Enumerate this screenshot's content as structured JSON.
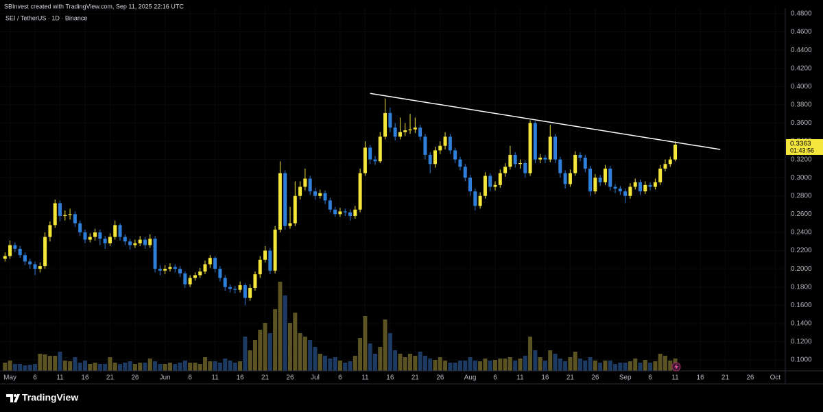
{
  "header": "SBInvest created with TradingView.com, Sep 11, 2025 22:16 UTC",
  "brand": "TradingView",
  "chart_data": {
    "type": "candlestick",
    "title": "SEI / TetherUS · 1D · Binance",
    "x": [
      "2025-04-30",
      "2025-05-01",
      "2025-05-02",
      "2025-05-03",
      "2025-05-04",
      "2025-05-05",
      "2025-05-06",
      "2025-05-07",
      "2025-05-08",
      "2025-05-09",
      "2025-05-10",
      "2025-05-11",
      "2025-05-12",
      "2025-05-13",
      "2025-05-14",
      "2025-05-15",
      "2025-05-16",
      "2025-05-17",
      "2025-05-18",
      "2025-05-19",
      "2025-05-20",
      "2025-05-21",
      "2025-05-22",
      "2025-05-23",
      "2025-05-24",
      "2025-05-25",
      "2025-05-26",
      "2025-05-27",
      "2025-05-28",
      "2025-05-29",
      "2025-05-30",
      "2025-05-31",
      "2025-06-01",
      "2025-06-02",
      "2025-06-03",
      "2025-06-04",
      "2025-06-05",
      "2025-06-06",
      "2025-06-07",
      "2025-06-08",
      "2025-06-09",
      "2025-06-10",
      "2025-06-11",
      "2025-06-12",
      "2025-06-13",
      "2025-06-14",
      "2025-06-15",
      "2025-06-16",
      "2025-06-17",
      "2025-06-18",
      "2025-06-19",
      "2025-06-20",
      "2025-06-21",
      "2025-06-22",
      "2025-06-23",
      "2025-06-24",
      "2025-06-25",
      "2025-06-26",
      "2025-06-27",
      "2025-06-28",
      "2025-06-29",
      "2025-06-30",
      "2025-07-01",
      "2025-07-02",
      "2025-07-03",
      "2025-07-04",
      "2025-07-05",
      "2025-07-06",
      "2025-07-07",
      "2025-07-08",
      "2025-07-09",
      "2025-07-10",
      "2025-07-11",
      "2025-07-12",
      "2025-07-13",
      "2025-07-14",
      "2025-07-15",
      "2025-07-16",
      "2025-07-17",
      "2025-07-18",
      "2025-07-19",
      "2025-07-20",
      "2025-07-21",
      "2025-07-22",
      "2025-07-23",
      "2025-07-24",
      "2025-07-25",
      "2025-07-26",
      "2025-07-27",
      "2025-07-28",
      "2025-07-29",
      "2025-07-30",
      "2025-07-31",
      "2025-08-01",
      "2025-08-02",
      "2025-08-03",
      "2025-08-04",
      "2025-08-05",
      "2025-08-06",
      "2025-08-07",
      "2025-08-08",
      "2025-08-09",
      "2025-08-10",
      "2025-08-11",
      "2025-08-12",
      "2025-08-13",
      "2025-08-14",
      "2025-08-15",
      "2025-08-16",
      "2025-08-17",
      "2025-08-18",
      "2025-08-19",
      "2025-08-20",
      "2025-08-21",
      "2025-08-22",
      "2025-08-23",
      "2025-08-24",
      "2025-08-25",
      "2025-08-26",
      "2025-08-27",
      "2025-08-28",
      "2025-08-29",
      "2025-08-30",
      "2025-08-31",
      "2025-09-01",
      "2025-09-02",
      "2025-09-03",
      "2025-09-04",
      "2025-09-05",
      "2025-09-06",
      "2025-09-07",
      "2025-09-08",
      "2025-09-09",
      "2025-09-10",
      "2025-09-11"
    ],
    "open": [
      0.211,
      0.214,
      0.226,
      0.222,
      0.215,
      0.208,
      0.205,
      0.2,
      0.203,
      0.235,
      0.248,
      0.272,
      0.258,
      0.259,
      0.26,
      0.25,
      0.24,
      0.232,
      0.235,
      0.24,
      0.233,
      0.228,
      0.235,
      0.248,
      0.235,
      0.23,
      0.226,
      0.228,
      0.232,
      0.226,
      0.233,
      0.2,
      0.198,
      0.2,
      0.202,
      0.2,
      0.195,
      0.183,
      0.19,
      0.193,
      0.197,
      0.205,
      0.212,
      0.2,
      0.19,
      0.18,
      0.178,
      0.177,
      0.182,
      0.168,
      0.179,
      0.194,
      0.21,
      0.22,
      0.198,
      0.243,
      0.305,
      0.247,
      0.25,
      0.28,
      0.29,
      0.299,
      0.285,
      0.28,
      0.283,
      0.275,
      0.265,
      0.26,
      0.263,
      0.262,
      0.258,
      0.265,
      0.305,
      0.333,
      0.32,
      0.318,
      0.345,
      0.371,
      0.355,
      0.345,
      0.35,
      0.352,
      0.353,
      0.355,
      0.345,
      0.325,
      0.315,
      0.33,
      0.335,
      0.345,
      0.33,
      0.32,
      0.312,
      0.3,
      0.285,
      0.269,
      0.28,
      0.302,
      0.29,
      0.292,
      0.305,
      0.312,
      0.325,
      0.315,
      0.316,
      0.305,
      0.36,
      0.32,
      0.322,
      0.32,
      0.345,
      0.32,
      0.305,
      0.293,
      0.305,
      0.325,
      0.322,
      0.31,
      0.285,
      0.3,
      0.295,
      0.31,
      0.29,
      0.288,
      0.285,
      0.28,
      0.29,
      0.295,
      0.285,
      0.292,
      0.29,
      0.295,
      0.31,
      0.315,
      0.32
    ],
    "high": [
      0.218,
      0.231,
      0.229,
      0.225,
      0.218,
      0.211,
      0.208,
      0.207,
      0.24,
      0.252,
      0.276,
      0.275,
      0.264,
      0.266,
      0.263,
      0.253,
      0.243,
      0.239,
      0.244,
      0.243,
      0.236,
      0.239,
      0.253,
      0.25,
      0.238,
      0.233,
      0.232,
      0.236,
      0.235,
      0.238,
      0.236,
      0.204,
      0.204,
      0.206,
      0.205,
      0.203,
      0.197,
      0.193,
      0.196,
      0.201,
      0.209,
      0.215,
      0.214,
      0.203,
      0.193,
      0.183,
      0.181,
      0.186,
      0.184,
      0.183,
      0.197,
      0.214,
      0.225,
      0.223,
      0.247,
      0.318,
      0.308,
      0.268,
      0.296,
      0.296,
      0.31,
      0.302,
      0.289,
      0.287,
      0.286,
      0.278,
      0.268,
      0.267,
      0.266,
      0.265,
      0.269,
      0.31,
      0.34,
      0.336,
      0.324,
      0.35,
      0.387,
      0.377,
      0.36,
      0.366,
      0.36,
      0.37,
      0.366,
      0.358,
      0.348,
      0.328,
      0.334,
      0.34,
      0.35,
      0.348,
      0.333,
      0.323,
      0.315,
      0.303,
      0.288,
      0.284,
      0.306,
      0.305,
      0.296,
      0.309,
      0.316,
      0.335,
      0.328,
      0.32,
      0.319,
      0.363,
      0.362,
      0.326,
      0.325,
      0.358,
      0.348,
      0.323,
      0.308,
      0.309,
      0.329,
      0.328,
      0.325,
      0.313,
      0.304,
      0.303,
      0.314,
      0.313,
      0.293,
      0.291,
      0.288,
      0.294,
      0.299,
      0.298,
      0.296,
      0.295,
      0.299,
      0.314,
      0.32,
      0.323,
      0.34
    ],
    "low": [
      0.208,
      0.211,
      0.218,
      0.212,
      0.204,
      0.2,
      0.193,
      0.196,
      0.2,
      0.23,
      0.245,
      0.252,
      0.253,
      0.254,
      0.246,
      0.236,
      0.228,
      0.229,
      0.231,
      0.226,
      0.222,
      0.225,
      0.232,
      0.231,
      0.226,
      0.221,
      0.223,
      0.225,
      0.222,
      0.223,
      0.196,
      0.193,
      0.194,
      0.197,
      0.196,
      0.191,
      0.179,
      0.18,
      0.187,
      0.19,
      0.194,
      0.201,
      0.196,
      0.186,
      0.176,
      0.174,
      0.173,
      0.174,
      0.16,
      0.165,
      0.176,
      0.19,
      0.207,
      0.194,
      0.195,
      0.24,
      0.243,
      0.244,
      0.247,
      0.276,
      0.286,
      0.281,
      0.276,
      0.277,
      0.271,
      0.262,
      0.257,
      0.257,
      0.258,
      0.253,
      0.255,
      0.262,
      0.302,
      0.315,
      0.314,
      0.316,
      0.342,
      0.35,
      0.341,
      0.342,
      0.346,
      0.348,
      0.349,
      0.341,
      0.32,
      0.305,
      0.311,
      0.326,
      0.331,
      0.326,
      0.316,
      0.308,
      0.296,
      0.28,
      0.264,
      0.266,
      0.277,
      0.285,
      0.286,
      0.289,
      0.301,
      0.309,
      0.311,
      0.31,
      0.3,
      0.302,
      0.316,
      0.316,
      0.316,
      0.317,
      0.316,
      0.3,
      0.288,
      0.29,
      0.302,
      0.318,
      0.306,
      0.28,
      0.282,
      0.291,
      0.292,
      0.286,
      0.283,
      0.281,
      0.272,
      0.277,
      0.287,
      0.281,
      0.282,
      0.286,
      0.287,
      0.292,
      0.307,
      0.312,
      0.318
    ],
    "close": [
      0.214,
      0.226,
      0.222,
      0.215,
      0.208,
      0.205,
      0.2,
      0.203,
      0.235,
      0.248,
      0.272,
      0.258,
      0.259,
      0.26,
      0.25,
      0.24,
      0.232,
      0.235,
      0.24,
      0.233,
      0.228,
      0.235,
      0.248,
      0.235,
      0.23,
      0.226,
      0.228,
      0.232,
      0.226,
      0.233,
      0.2,
      0.198,
      0.2,
      0.202,
      0.2,
      0.195,
      0.183,
      0.19,
      0.193,
      0.197,
      0.205,
      0.212,
      0.2,
      0.19,
      0.18,
      0.178,
      0.177,
      0.182,
      0.168,
      0.179,
      0.194,
      0.21,
      0.22,
      0.198,
      0.243,
      0.305,
      0.247,
      0.25,
      0.28,
      0.29,
      0.299,
      0.285,
      0.28,
      0.283,
      0.275,
      0.265,
      0.26,
      0.263,
      0.262,
      0.258,
      0.265,
      0.305,
      0.333,
      0.32,
      0.318,
      0.345,
      0.371,
      0.355,
      0.345,
      0.35,
      0.352,
      0.353,
      0.355,
      0.345,
      0.325,
      0.315,
      0.33,
      0.335,
      0.345,
      0.33,
      0.32,
      0.312,
      0.3,
      0.285,
      0.269,
      0.28,
      0.302,
      0.29,
      0.292,
      0.305,
      0.312,
      0.325,
      0.315,
      0.316,
      0.305,
      0.36,
      0.32,
      0.322,
      0.32,
      0.345,
      0.32,
      0.305,
      0.293,
      0.305,
      0.325,
      0.322,
      0.31,
      0.285,
      0.3,
      0.295,
      0.31,
      0.29,
      0.288,
      0.285,
      0.28,
      0.29,
      0.295,
      0.285,
      0.292,
      0.29,
      0.295,
      0.31,
      0.315,
      0.32,
      0.3363
    ],
    "volume": [
      12,
      15,
      10,
      10,
      8,
      9,
      10,
      25,
      24,
      22,
      22,
      28,
      15,
      14,
      20,
      12,
      15,
      10,
      12,
      10,
      10,
      20,
      12,
      10,
      12,
      14,
      10,
      12,
      12,
      18,
      14,
      10,
      10,
      12,
      10,
      12,
      15,
      12,
      12,
      10,
      20,
      14,
      14,
      12,
      18,
      15,
      12,
      14,
      50,
      30,
      45,
      60,
      70,
      55,
      90,
      130,
      110,
      70,
      85,
      55,
      50,
      45,
      35,
      25,
      22,
      18,
      20,
      15,
      12,
      14,
      22,
      48,
      80,
      40,
      25,
      35,
      75,
      55,
      30,
      25,
      20,
      25,
      22,
      28,
      22,
      18,
      16,
      20,
      15,
      12,
      12,
      15,
      15,
      20,
      15,
      14,
      18,
      15,
      16,
      18,
      18,
      20,
      15,
      18,
      22,
      50,
      30,
      20,
      15,
      30,
      25,
      18,
      14,
      20,
      28,
      18,
      15,
      20,
      15,
      12,
      15,
      15,
      10,
      12,
      12,
      14,
      18,
      12,
      16,
      12,
      14,
      25,
      22,
      15,
      18
    ],
    "up_color": "#f5e63c",
    "down_color": "#2f7fd8",
    "volume_up_color": "#5b5322",
    "volume_down_color": "#1d3a63",
    "trendline": {
      "x": [
        "2025-07-12",
        "2025-09-20"
      ],
      "y": [
        0.3925,
        0.331
      ],
      "color": "#ffffff"
    },
    "last_price": {
      "value": 0.3363,
      "label": "0.3363"
    },
    "countdown": "01:43:56",
    "xlim": [
      "2025-04-29",
      "2025-10-03"
    ],
    "ylim": [
      0.088,
      0.486
    ],
    "xticks": [
      {
        "value": "2025-05-01",
        "label": "May"
      },
      {
        "value": "2025-05-06",
        "label": "6"
      },
      {
        "value": "2025-05-11",
        "label": "11"
      },
      {
        "value": "2025-05-16",
        "label": "16"
      },
      {
        "value": "2025-05-21",
        "label": "21"
      },
      {
        "value": "2025-05-26",
        "label": "26"
      },
      {
        "value": "2025-06-01",
        "label": "Jun"
      },
      {
        "value": "2025-06-06",
        "label": "6"
      },
      {
        "value": "2025-06-11",
        "label": "11"
      },
      {
        "value": "2025-06-16",
        "label": "16"
      },
      {
        "value": "2025-06-21",
        "label": "21"
      },
      {
        "value": "2025-06-26",
        "label": "26"
      },
      {
        "value": "2025-07-01",
        "label": "Jul"
      },
      {
        "value": "2025-07-06",
        "label": "6"
      },
      {
        "value": "2025-07-11",
        "label": "11"
      },
      {
        "value": "2025-07-16",
        "label": "16"
      },
      {
        "value": "2025-07-21",
        "label": "21"
      },
      {
        "value": "2025-07-26",
        "label": "26"
      },
      {
        "value": "2025-08-01",
        "label": "Aug"
      },
      {
        "value": "2025-08-06",
        "label": "6"
      },
      {
        "value": "2025-08-11",
        "label": "11"
      },
      {
        "value": "2025-08-16",
        "label": "16"
      },
      {
        "value": "2025-08-21",
        "label": "21"
      },
      {
        "value": "2025-08-26",
        "label": "26"
      },
      {
        "value": "2025-09-01",
        "label": "Sep"
      },
      {
        "value": "2025-09-06",
        "label": "6"
      },
      {
        "value": "2025-09-11",
        "label": "11"
      },
      {
        "value": "2025-09-16",
        "label": "16"
      },
      {
        "value": "2025-09-21",
        "label": "21"
      },
      {
        "value": "2025-09-26",
        "label": "26"
      },
      {
        "value": "2025-10-01",
        "label": "Oct"
      }
    ],
    "yticks": [
      {
        "value": 0.1,
        "label": "0.1000"
      },
      {
        "value": 0.12,
        "label": "0.1200"
      },
      {
        "value": 0.14,
        "label": "0.1400"
      },
      {
        "value": 0.16,
        "label": "0.1600"
      },
      {
        "value": 0.18,
        "label": "0.1800"
      },
      {
        "value": 0.2,
        "label": "0.2000"
      },
      {
        "value": 0.22,
        "label": "0.2200"
      },
      {
        "value": 0.24,
        "label": "0.2400"
      },
      {
        "value": 0.26,
        "label": "0.2600"
      },
      {
        "value": 0.28,
        "label": "0.2800"
      },
      {
        "value": 0.3,
        "label": "0.3000"
      },
      {
        "value": 0.32,
        "label": "0.3200"
      },
      {
        "value": 0.34,
        "label": "0.3400"
      },
      {
        "value": 0.36,
        "label": "0.3600"
      },
      {
        "value": 0.38,
        "label": "0.3800"
      },
      {
        "value": 0.4,
        "label": "0.4000"
      },
      {
        "value": 0.42,
        "label": "0.4200"
      },
      {
        "value": 0.44,
        "label": "0.4400"
      },
      {
        "value": 0.46,
        "label": "0.4600"
      },
      {
        "value": 0.48,
        "label": "0.4800"
      }
    ]
  }
}
